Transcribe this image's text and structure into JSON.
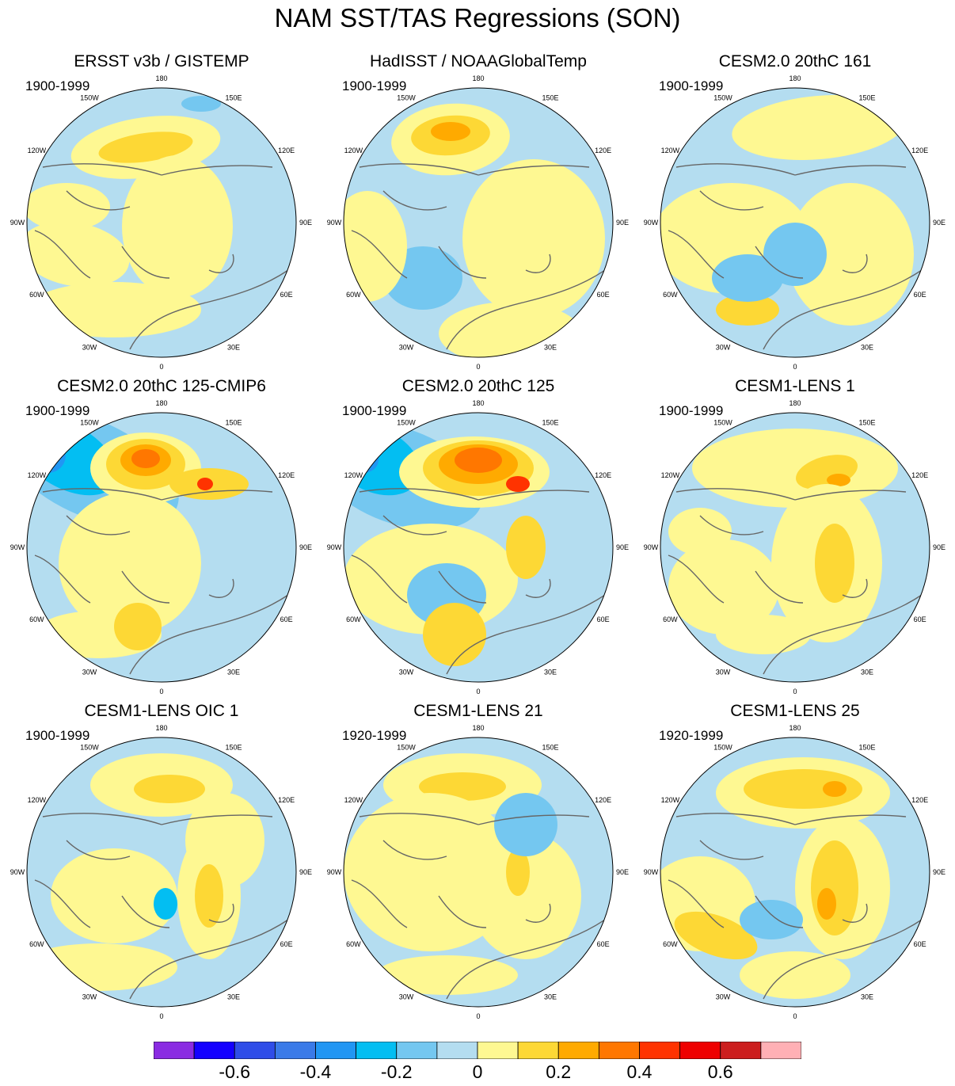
{
  "figure": {
    "title": "NAM SST/TAS Regressions (SON)",
    "colors": {
      "land_outline": "#666666",
      "missing": "#ffffff"
    }
  },
  "lon_labels": [
    "180",
    "150E",
    "120E",
    "90E",
    "60E",
    "30E",
    "0",
    "30W",
    "60W",
    "90W",
    "120W",
    "150W"
  ],
  "panels": [
    {
      "title": "ERSST v3b / GISTEMP",
      "period": "1900-1999",
      "pattern": "ersst"
    },
    {
      "title": "HadISST / NOAAGlobalTemp",
      "period": "1900-1999",
      "pattern": "hadisst"
    },
    {
      "title": "CESM2.0 20thC 161",
      "period": "1900-1999",
      "pattern": "cesm161"
    },
    {
      "title": "CESM2.0 20thC 125-CMIP6",
      "period": "1900-1999",
      "pattern": "cesm125cmip6"
    },
    {
      "title": "CESM2.0 20thC 125",
      "period": "1900-1999",
      "pattern": "cesm125"
    },
    {
      "title": "CESM1-LENS 1",
      "period": "1900-1999",
      "pattern": "lens1"
    },
    {
      "title": "CESM1-LENS OIC 1",
      "period": "1900-1999",
      "pattern": "lensoic"
    },
    {
      "title": "CESM1-LENS 21",
      "period": "1920-1999",
      "pattern": "lens21"
    },
    {
      "title": "CESM1-LENS 25",
      "period": "1920-1999",
      "pattern": "lens25"
    }
  ],
  "colorbar": {
    "colors": [
      "#8a2be2",
      "#1400ff",
      "#2f4de8",
      "#3a7ae8",
      "#2196f3",
      "#03bef2",
      "#74c7f0",
      "#b4ddf0",
      "#fef892",
      "#fdd835",
      "#ffaa00",
      "#ff7700",
      "#ff3300",
      "#ee0000",
      "#cc1e1e",
      "#ffb0b5"
    ],
    "labels": [
      "-0.6",
      "-0.4",
      "-0.2",
      "0",
      "0.2",
      "0.4",
      "0.6"
    ]
  }
}
